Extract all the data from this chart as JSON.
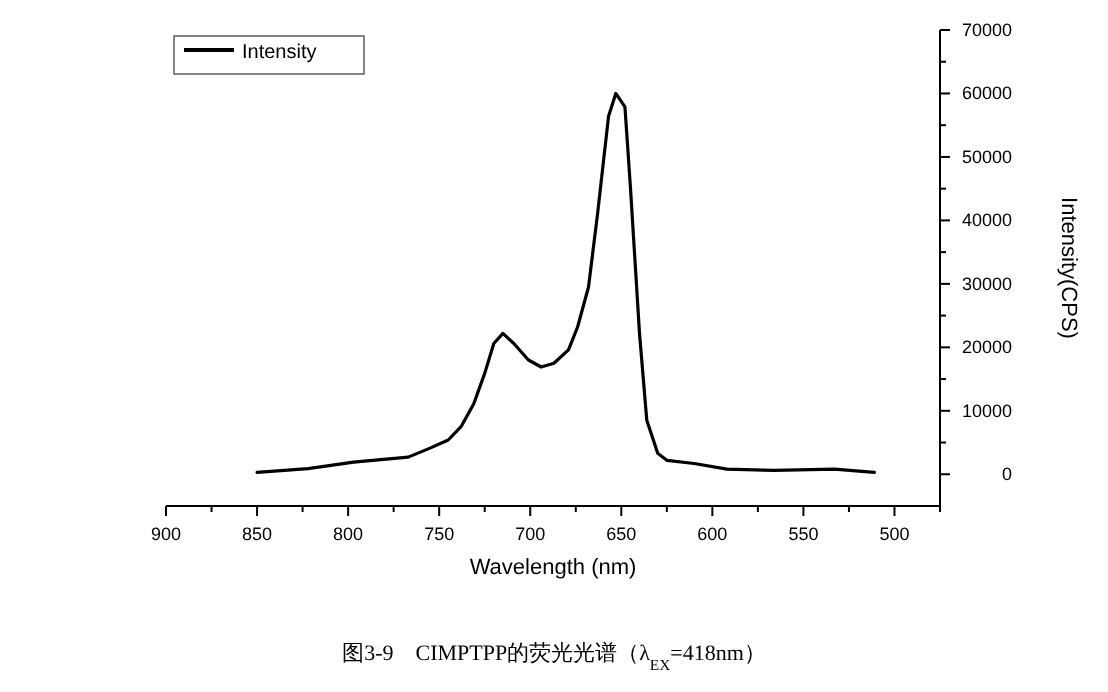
{
  "chart_data": {
    "type": "line",
    "xlabel": "Wavelength (nm)",
    "ylabel": "Intensity(CPS)",
    "annotations": [
      "图3-9　CIMPTPP的荧光光谱（λ$_{EX}$=418nm）"
    ],
    "xlim": [
      900,
      475
    ],
    "ylim": [
      -5000,
      70000
    ],
    "xticks": [
      900,
      {
        "value": 875,
        "label": null
      },
      850,
      {
        "value": 825,
        "label": null
      },
      800,
      {
        "value": 775,
        "label": null
      },
      750,
      {
        "value": 725,
        "label": null
      },
      700,
      {
        "value": 675,
        "label": null
      },
      650,
      {
        "value": 625,
        "label": null
      },
      600,
      {
        "value": 575,
        "label": null
      },
      550,
      {
        "value": 525,
        "label": null
      },
      500,
      {
        "value": 475,
        "label": null
      }
    ],
    "yticks": [
      0,
      {
        "value": 5000,
        "label": null
      },
      10000,
      {
        "value": 15000,
        "label": null
      },
      20000,
      {
        "value": 25000,
        "label": null
      },
      30000,
      {
        "value": 35000,
        "label": null
      },
      40000,
      {
        "value": 45000,
        "label": null
      },
      50000,
      {
        "value": 55000,
        "label": null
      },
      60000,
      {
        "value": 65000,
        "label": null
      },
      70000
    ],
    "legend": "top left",
    "grid": false,
    "marker": "none",
    "line_style": "solid",
    "x": [
      850,
      822,
      797,
      767,
      756,
      745,
      738,
      731,
      725,
      720,
      715,
      709,
      701,
      694,
      687,
      679,
      674,
      668,
      663,
      657,
      653,
      648,
      645,
      640,
      636,
      630,
      625,
      610,
      592,
      566,
      533,
      511
    ],
    "series": [
      {
        "name": "Intensity",
        "color": "#000000",
        "values": [
          300,
          900,
          1900,
          2700,
          4000,
          5400,
          7500,
          11100,
          15900,
          20600,
          22200,
          20600,
          18000,
          16900,
          17500,
          19600,
          23200,
          29500,
          41100,
          56400,
          60000,
          57900,
          45300,
          22200,
          8500,
          3300,
          2200,
          1700,
          800,
          600,
          800,
          300
        ]
      }
    ]
  }
}
